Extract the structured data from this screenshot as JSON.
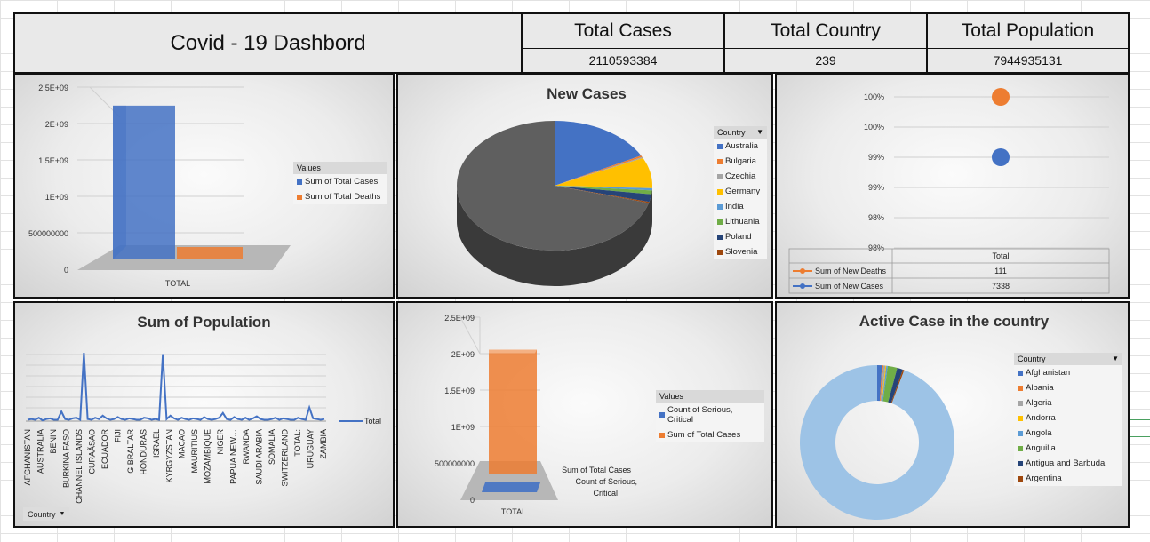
{
  "header": {
    "title": "Covid - 19 Dashbord",
    "kpis": [
      {
        "label": "Total Cases",
        "value": "2110593384"
      },
      {
        "label": "Total Country",
        "value": "239"
      },
      {
        "label": "Total Population",
        "value": "7944935131"
      }
    ]
  },
  "colors": {
    "blue": "#4472c4",
    "orange": "#ed7d31",
    "gray": "#a5a5a5",
    "yellow": "#ffc000",
    "light_blue": "#5b9bd5",
    "green": "#70ad47",
    "navy": "#264478",
    "brown": "#9e480e",
    "dark_gray": "#636363",
    "pale_blue": "#9dc3e6"
  },
  "chart_data": [
    {
      "id": "totals-3d-bar",
      "type": "bar",
      "categories": [
        "TOTAL"
      ],
      "series": [
        {
          "name": "Sum of Total Cases",
          "values": [
            2110593384
          ]
        },
        {
          "name": "Sum of Total Deaths",
          "values": [
            15000000
          ]
        }
      ],
      "yticks": [
        "0",
        "500000000",
        "1E+09",
        "1.5E+09",
        "2E+09",
        "2.5E+09"
      ],
      "ylim": [
        0,
        2500000000
      ],
      "legend_title": "Values",
      "legend_position": "right"
    },
    {
      "id": "new-cases-pie",
      "type": "pie",
      "title": "New Cases",
      "legend_title": "Country",
      "labels": [
        "Australia",
        "Bulgaria",
        "Czechia",
        "Germany",
        "India",
        "Lithuania",
        "Poland",
        "Slovenia"
      ],
      "values": [
        1270,
        30,
        20,
        560,
        40,
        70,
        140,
        20
      ],
      "other_value": 5188
    },
    {
      "id": "new-totals-line",
      "type": "line",
      "yticks": [
        "98%",
        "98%",
        "99%",
        "99%",
        "100%",
        "100%"
      ],
      "table_header": "Total",
      "series": [
        {
          "name": "Sum of New Deaths",
          "value": "111",
          "level": 1.0
        },
        {
          "name": "Sum of New Cases",
          "value": "7338",
          "level": 0.6
        }
      ]
    },
    {
      "id": "population-line",
      "type": "line",
      "title": "Sum of Population",
      "legend": [
        "Total"
      ],
      "filter_label": "Country",
      "x_tick_labels": [
        "AFGHANISTAN",
        "AUSTRALIA",
        "BENIN",
        "BURKINA FASO",
        "CHANNEL ISLANDS",
        "CURAÃSAO",
        "ECUADOR",
        "FIJI",
        "GIBRALTAR",
        "HONDURAS",
        "ISRAEL",
        "KYRGYZSTAN",
        "MACAO",
        "MAURITIUS",
        "MOZAMBIQUE",
        "NIGER",
        "PAPUA NEW…",
        "RWANDA",
        "SAUDI ARABIA",
        "SOMALIA",
        "SWITZERLAND",
        "TOTAL:",
        "URUGUAY",
        "ZAMBIA"
      ],
      "values": [
        0.02,
        0.03,
        0.02,
        0.05,
        0.01,
        0.03,
        0.04,
        0.02,
        0.02,
        0.14,
        0.03,
        0.02,
        0.04,
        0.05,
        0.02,
        1.0,
        0.03,
        0.02,
        0.05,
        0.03,
        0.08,
        0.04,
        0.02,
        0.03,
        0.06,
        0.03,
        0.02,
        0.04,
        0.03,
        0.02,
        0.02,
        0.05,
        0.04,
        0.02,
        0.03,
        0.02,
        0.98,
        0.03,
        0.08,
        0.04,
        0.02,
        0.05,
        0.03,
        0.02,
        0.04,
        0.03,
        0.02,
        0.06,
        0.03,
        0.02,
        0.03,
        0.05,
        0.12,
        0.03,
        0.02,
        0.06,
        0.03,
        0.02,
        0.05,
        0.02,
        0.04,
        0.07,
        0.03,
        0.02,
        0.02,
        0.03,
        0.05,
        0.02,
        0.04,
        0.03,
        0.02,
        0.02,
        0.05,
        0.03,
        0.02,
        0.2,
        0.04,
        0.03,
        0.02,
        0.03
      ]
    },
    {
      "id": "serious-3d-bar",
      "type": "bar",
      "categories": [
        "TOTAL"
      ],
      "series": [
        {
          "name": "Count of Serious, Critical",
          "values": [
            230
          ]
        },
        {
          "name": "Sum of Total Cases",
          "values": [
            2110593384
          ]
        }
      ],
      "yticks": [
        "0",
        "500000000",
        "1E+09",
        "1.5E+09",
        "2E+09",
        "2.5E+09"
      ],
      "ylim": [
        0,
        2500000000
      ],
      "legend_title": "Values",
      "inline_labels": [
        "Sum of Total Cases",
        "Count of Serious,",
        "Critical"
      ]
    },
    {
      "id": "active-donut",
      "type": "pie",
      "title": "Active Case in the country",
      "legend_title": "Country",
      "labels": [
        "Afghanistan",
        "Albania",
        "Algeria",
        "Andorra",
        "Angola",
        "Anguilla",
        "Antigua and Barbuda",
        "Argentina"
      ],
      "values": [
        1.0,
        0.3,
        0.4,
        0.2,
        0.3,
        2.0,
        1.2,
        0.3
      ],
      "other_value": 94.3
    }
  ]
}
